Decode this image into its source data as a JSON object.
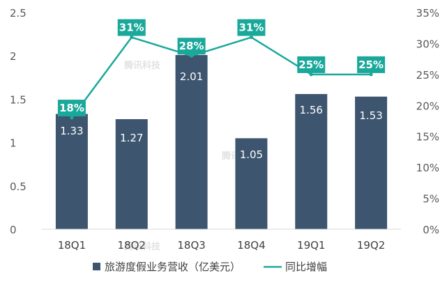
{
  "chart_data": {
    "type": "bar",
    "categories": [
      "18Q1",
      "18Q2",
      "18Q3",
      "18Q4",
      "19Q1",
      "19Q2"
    ],
    "series": [
      {
        "name": "旅游度假业务营收（亿美元）",
        "type": "bar",
        "axis": "left",
        "values": [
          1.33,
          1.27,
          2.01,
          1.05,
          1.56,
          1.53
        ],
        "labels": [
          "1.33",
          "1.27",
          "2.01",
          "1.05",
          "1.56",
          "1.53"
        ],
        "color": "#3d556e"
      },
      {
        "name": "同比增幅",
        "type": "line",
        "axis": "right",
        "values": [
          18,
          31,
          28,
          31,
          25,
          25
        ],
        "labels": [
          "18%",
          "31%",
          "28%",
          "31%",
          "25%",
          "25%"
        ],
        "color": "#1aa89a"
      }
    ],
    "y_left": {
      "ylim": [
        0,
        2.5
      ],
      "ticks": [
        0,
        0.5,
        1,
        1.5,
        2,
        2.5
      ],
      "tick_labels": [
        "0",
        "0.5",
        "1",
        "1.5",
        "2",
        "2.5"
      ]
    },
    "y_right": {
      "ylim": [
        0,
        35
      ],
      "ticks": [
        0,
        5,
        10,
        15,
        20,
        25,
        30,
        35
      ],
      "tick_labels": [
        "0%",
        "5%",
        "10%",
        "15%",
        "20%",
        "25%",
        "30%",
        "35%"
      ]
    },
    "grid": false,
    "legend_position": "bottom",
    "watermark": "腾讯科技"
  }
}
